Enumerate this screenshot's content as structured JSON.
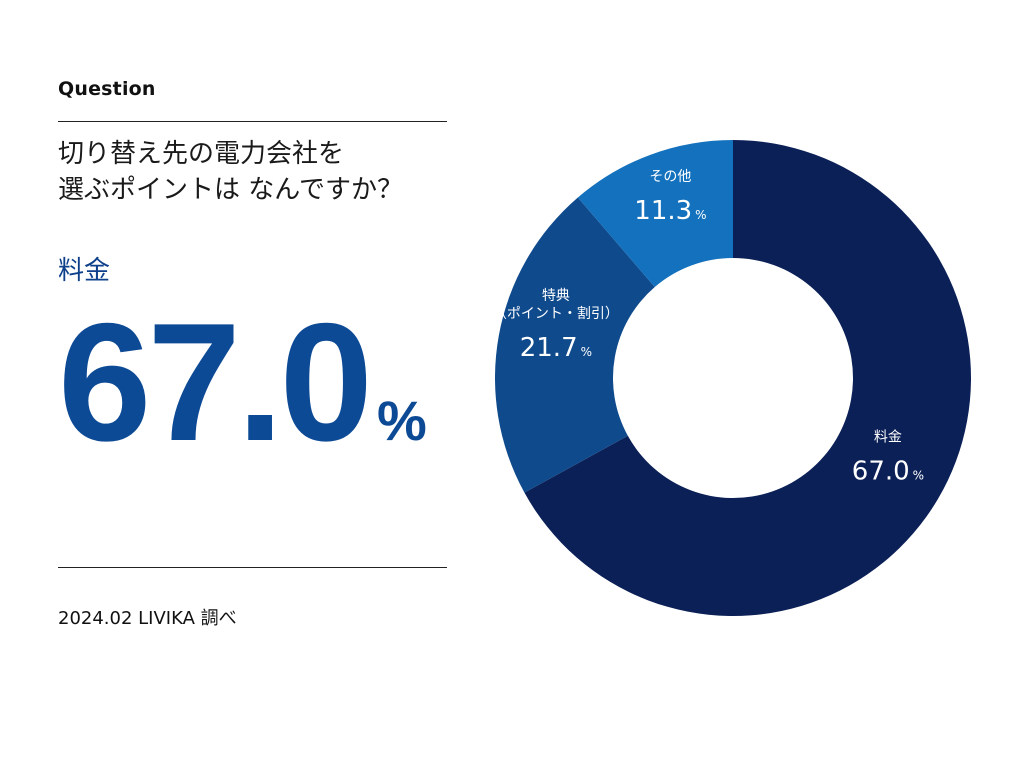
{
  "question_label": "Question",
  "question_lines": [
    "切り替え先の電力会社を",
    "選ぶポイントは なんですか？"
  ],
  "answer_label": "料金",
  "answer_value": "67.0",
  "answer_unit": "%",
  "source": "2024.02 LIVIKA 調べ",
  "colors": {
    "accent": "#0d4a96",
    "segment_1": "#0b2057",
    "segment_2": "#0f4a8c",
    "segment_3": "#1471bd"
  },
  "chart_data": {
    "type": "pie",
    "categories": [
      "料金",
      "特典（ポイント・割引）",
      "その他"
    ],
    "label_lines": [
      [
        "料金"
      ],
      [
        "特典",
        "（ポイント・割引）"
      ],
      [
        "その他"
      ]
    ],
    "values": [
      67.0,
      21.7,
      11.3
    ],
    "value_labels": [
      "67.0",
      "21.7",
      "11.3"
    ],
    "unit": "%"
  }
}
